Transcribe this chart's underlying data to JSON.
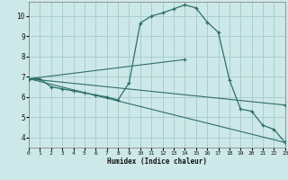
{
  "xlabel": "Humidex (Indice chaleur)",
  "bg_color": "#cde8e8",
  "grid_color": "#a8cece",
  "line_color": "#2e6e68",
  "xlim": [
    0,
    23
  ],
  "ylim": [
    3.5,
    10.7
  ],
  "yticks": [
    4,
    5,
    6,
    7,
    8,
    9,
    10
  ],
  "xticks": [
    0,
    1,
    2,
    3,
    4,
    5,
    6,
    7,
    8,
    9,
    10,
    11,
    12,
    13,
    14,
    15,
    16,
    17,
    18,
    19,
    20,
    21,
    22,
    23
  ],
  "series0_x": [
    0,
    1,
    2,
    3,
    4,
    5,
    6,
    7,
    8,
    9,
    10,
    11,
    12,
    13,
    14,
    15,
    16,
    17,
    18,
    19,
    20,
    21,
    22,
    23
  ],
  "series0_y": [
    6.9,
    6.9,
    6.5,
    6.4,
    6.3,
    6.2,
    6.1,
    6.0,
    5.85,
    6.7,
    9.65,
    10.0,
    10.15,
    10.35,
    10.55,
    10.4,
    9.7,
    9.2,
    6.85,
    5.4,
    5.3,
    4.6,
    4.4,
    3.75
  ],
  "series1_x": [
    0,
    23
  ],
  "series1_y": [
    6.9,
    3.75
  ],
  "series2_x": [
    0,
    14
  ],
  "series2_y": [
    6.9,
    7.85
  ],
  "series3_x": [
    0,
    23
  ],
  "series3_y": [
    6.9,
    5.6
  ]
}
